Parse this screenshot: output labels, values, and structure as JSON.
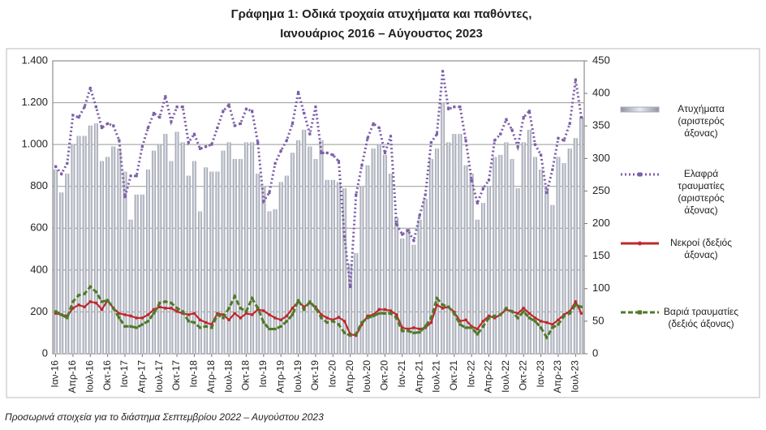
{
  "chart_data": {
    "type": "bar",
    "title": "Γράφημα 1: Οδικά τροχαία ατυχήματα και παθόντες,",
    "subtitle": "Ιανουάριος 2016 – Αύγουστος 2023",
    "note": "Προσωρινά στοιχεία για το διάστημα Σεπτεμβρίου 2022 – Αυγούστου 2023",
    "categories": [
      "Ιαν-16",
      null,
      null,
      "Απρ-16",
      null,
      null,
      "Ιουλ-16",
      null,
      null,
      "Οκτ-16",
      null,
      null,
      "Ιαν-17",
      null,
      null,
      "Απρ-17",
      null,
      null,
      "Ιουλ-17",
      null,
      null,
      "Οκτ-17",
      null,
      null,
      "Ιαν-18",
      null,
      null,
      "Απρ-18",
      null,
      null,
      "Ιουλ-18",
      null,
      null,
      "Οκτ-18",
      null,
      null,
      "Ιαν-19",
      null,
      null,
      "Απρ-19",
      null,
      null,
      "Ιουλ-19",
      null,
      null,
      "Οκτ-19",
      null,
      null,
      "Ιαν-20",
      null,
      null,
      "Απρ-20",
      null,
      null,
      "Ιουλ-20",
      null,
      null,
      "Οκτ-20",
      null,
      null,
      "Ιαν-21",
      null,
      null,
      "Απρ-21",
      null,
      null,
      "Ιουλ-21",
      null,
      null,
      "Οκτ-21",
      null,
      null,
      "Ιαν-22",
      null,
      null,
      "Απρ-22",
      null,
      null,
      "Ιουλ-22",
      null,
      null,
      "Οκτ-22",
      null,
      null,
      "Ιαν-23",
      null,
      null,
      "Απρ-23",
      null,
      null,
      "Ιουλ-23",
      null
    ],
    "series": [
      {
        "name": "Ατυχήματα (αριστερός άξονας)",
        "type": "bar",
        "color": "#a9adb8",
        "axis": "y",
        "values": [
          880,
          770,
          860,
          1000,
          1040,
          1040,
          1090,
          1100,
          920,
          940,
          990,
          980,
          870,
          640,
          760,
          760,
          880,
          970,
          1000,
          1050,
          920,
          1060,
          1010,
          850,
          920,
          680,
          890,
          870,
          870,
          970,
          1010,
          930,
          930,
          1010,
          1010,
          860,
          800,
          680,
          690,
          820,
          850,
          960,
          1020,
          1070,
          990,
          930,
          1020,
          830,
          830,
          820,
          790,
          430,
          480,
          800,
          900,
          980,
          1000,
          950,
          860,
          650,
          550,
          600,
          520,
          640,
          740,
          930,
          980,
          1200,
          1010,
          1050,
          1050,
          900,
          860,
          640,
          720,
          800,
          940,
          950,
          1010,
          930,
          790,
          1010,
          1070,
          940,
          880,
          790,
          710,
          940,
          910,
          980,
          1030,
          1130
        ]
      },
      {
        "name": "Ελαφρά τραυματίες (αριστερός άξονας)",
        "type": "line",
        "color": "#7b5ea8",
        "axis": "y",
        "line_style": "dotted",
        "marker": "square",
        "values": [
          895,
          860,
          910,
          1140,
          1130,
          1180,
          1270,
          1180,
          1080,
          1100,
          1090,
          1020,
          750,
          850,
          850,
          990,
          1080,
          1150,
          1130,
          1230,
          1110,
          1180,
          1180,
          1010,
          1050,
          980,
          990,
          1000,
          1080,
          1160,
          1190,
          1090,
          1100,
          1170,
          1160,
          1010,
          730,
          770,
          910,
          970,
          1020,
          1100,
          1250,
          1150,
          1050,
          1180,
          960,
          960,
          950,
          920,
          560,
          320,
          760,
          900,
          1030,
          1100,
          1080,
          960,
          1040,
          620,
          570,
          590,
          540,
          660,
          760,
          1010,
          1050,
          1350,
          1170,
          1180,
          1180,
          1020,
          830,
          720,
          790,
          830,
          1020,
          1050,
          1120,
          1070,
          990,
          1130,
          1160,
          1000,
          950,
          770,
          880,
          1030,
          1020,
          1100,
          1310,
          1130
        ]
      },
      {
        "name": "Νεκροί (δεξιός άξονας)",
        "type": "line",
        "color": "#c0282b",
        "axis": "y2",
        "line_style": "solid",
        "marker": "circle",
        "values": [
          62,
          60,
          58,
          70,
          75,
          72,
          80,
          78,
          68,
          82,
          70,
          62,
          60,
          58,
          55,
          55,
          60,
          68,
          72,
          70,
          70,
          65,
          62,
          60,
          62,
          52,
          48,
          45,
          62,
          60,
          52,
          62,
          55,
          62,
          60,
          68,
          66,
          60,
          55,
          52,
          58,
          70,
          80,
          72,
          78,
          72,
          60,
          55,
          52,
          56,
          50,
          30,
          28,
          45,
          58,
          60,
          68,
          68,
          66,
          60,
          40,
          38,
          40,
          38,
          40,
          48,
          75,
          70,
          72,
          64,
          50,
          52,
          42,
          38,
          50,
          58,
          55,
          60,
          68,
          65,
          62,
          70,
          62,
          55,
          50,
          48,
          45,
          52,
          60,
          65,
          80,
          62
        ]
      },
      {
        "name": "Βαριά τραυματίες (δεξιός άξονας)",
        "type": "line",
        "color": "#4f7a28",
        "axis": "y2",
        "line_style": "dashed",
        "marker": "square",
        "values": [
          65,
          60,
          55,
          80,
          90,
          92,
          103,
          95,
          80,
          82,
          70,
          55,
          42,
          42,
          40,
          45,
          50,
          62,
          78,
          80,
          78,
          70,
          65,
          50,
          48,
          40,
          42,
          40,
          60,
          55,
          70,
          88,
          70,
          65,
          85,
          70,
          48,
          38,
          38,
          42,
          50,
          60,
          82,
          68,
          80,
          70,
          55,
          48,
          50,
          45,
          32,
          28,
          30,
          48,
          55,
          58,
          62,
          62,
          62,
          55,
          35,
          35,
          32,
          33,
          42,
          55,
          85,
          75,
          72,
          62,
          45,
          40,
          40,
          30,
          42,
          55,
          58,
          60,
          70,
          65,
          55,
          65,
          55,
          50,
          40,
          25,
          40,
          45,
          58,
          62,
          75,
          72
        ]
      }
    ],
    "ylim": [
      0,
      1400
    ],
    "yticks": [
      0,
      200,
      400,
      600,
      800,
      {
        "value": 1000,
        "label": "1.000"
      },
      {
        "value": 1200,
        "label": "1.200"
      },
      {
        "value": 1400,
        "label": "1.400"
      }
    ],
    "y2lim": [
      0,
      450
    ],
    "y2ticks": [
      0,
      50,
      100,
      150,
      200,
      250,
      300,
      350,
      400,
      450
    ],
    "grid": true,
    "legend": "right"
  }
}
